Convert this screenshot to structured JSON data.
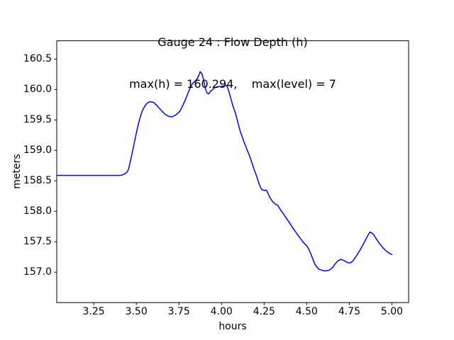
{
  "figure": {
    "title_line1": "Gauge 24 : Flow Depth (h)",
    "title_line2": "max(h) = 160.294,    max(level) = 7",
    "xlabel": "hours",
    "ylabel": "meters"
  },
  "chart_data": {
    "type": "line",
    "title": "Gauge 24 : Flow Depth (h)",
    "subtitle": "max(h) = 160.294,    max(level) = 7",
    "xlabel": "hours",
    "ylabel": "meters",
    "xlim": [
      3.033,
      5.098
    ],
    "ylim": [
      156.5,
      160.8
    ],
    "x_ticks": [
      3.25,
      3.5,
      3.75,
      4.0,
      4.25,
      4.5,
      4.75,
      5.0
    ],
    "x_tick_labels": [
      "3.25",
      "3.50",
      "3.75",
      "4.00",
      "4.25",
      "4.50",
      "4.75",
      "5.00"
    ],
    "y_ticks": [
      160.5,
      160.0,
      159.5,
      159.0,
      158.5,
      158.0,
      157.5,
      157.0
    ],
    "y_tick_labels": [
      "160.5",
      "160.0",
      "159.5",
      "159.0",
      "158.5",
      "158.0",
      "157.5",
      "157.0"
    ],
    "grid": false,
    "legend_position": "none",
    "line_color": "#0000ff",
    "line_width": 1.5,
    "max_h": 160.294,
    "max_level": 7,
    "series": [
      {
        "name": "h",
        "x": [
          3.033,
          3.1,
          3.2,
          3.3,
          3.38,
          3.41,
          3.43,
          3.445,
          3.455,
          3.465,
          3.475,
          3.49,
          3.505,
          3.52,
          3.535,
          3.55,
          3.565,
          3.58,
          3.6,
          3.62,
          3.645,
          3.67,
          3.69,
          3.71,
          3.73,
          3.755,
          3.775,
          3.795,
          3.815,
          3.83,
          3.845,
          3.858,
          3.868,
          3.875,
          3.885,
          3.895,
          3.905,
          3.915,
          3.925,
          3.935,
          3.945,
          3.955,
          3.97,
          3.985,
          4.0,
          4.015,
          4.025,
          4.033,
          4.042,
          4.054,
          4.07,
          4.083,
          4.108,
          4.137,
          4.166,
          4.19,
          4.208,
          4.222,
          4.235,
          4.25,
          4.262,
          4.272,
          4.285,
          4.3,
          4.315,
          4.33,
          4.345,
          4.36,
          4.39,
          4.42,
          4.45,
          4.48,
          4.504,
          4.52,
          4.535,
          4.55,
          4.57,
          4.59,
          4.61,
          4.63,
          4.65,
          4.666,
          4.68,
          4.7,
          4.72,
          4.737,
          4.754,
          4.77,
          4.79,
          4.813,
          4.838,
          4.858,
          4.871,
          4.89,
          4.91,
          4.93,
          4.95,
          4.97,
          4.99,
          5.0
        ],
        "y": [
          158.59,
          158.59,
          158.59,
          158.59,
          158.59,
          158.59,
          158.61,
          158.64,
          158.7,
          158.82,
          158.95,
          159.15,
          159.35,
          159.52,
          159.65,
          159.73,
          159.78,
          159.8,
          159.79,
          159.74,
          159.66,
          159.59,
          159.56,
          159.55,
          159.58,
          159.64,
          159.75,
          159.88,
          160.02,
          160.1,
          160.14,
          160.18,
          160.24,
          160.294,
          160.26,
          160.16,
          160.02,
          159.94,
          159.93,
          159.97,
          159.99,
          160.02,
          160.04,
          160.05,
          160.05,
          160.06,
          160.07,
          160.05,
          159.98,
          159.86,
          159.7,
          159.6,
          159.33,
          159.1,
          158.9,
          158.7,
          158.56,
          158.44,
          158.36,
          158.34,
          158.35,
          158.3,
          158.22,
          158.16,
          158.12,
          158.1,
          158.03,
          157.97,
          157.85,
          157.72,
          157.6,
          157.49,
          157.42,
          157.33,
          157.22,
          157.12,
          157.05,
          157.03,
          157.02,
          157.03,
          157.07,
          157.13,
          157.18,
          157.21,
          157.19,
          157.16,
          157.15,
          157.18,
          157.26,
          157.36,
          157.49,
          157.6,
          157.66,
          157.63,
          157.54,
          157.46,
          157.39,
          157.34,
          157.3,
          157.29
        ]
      }
    ]
  }
}
